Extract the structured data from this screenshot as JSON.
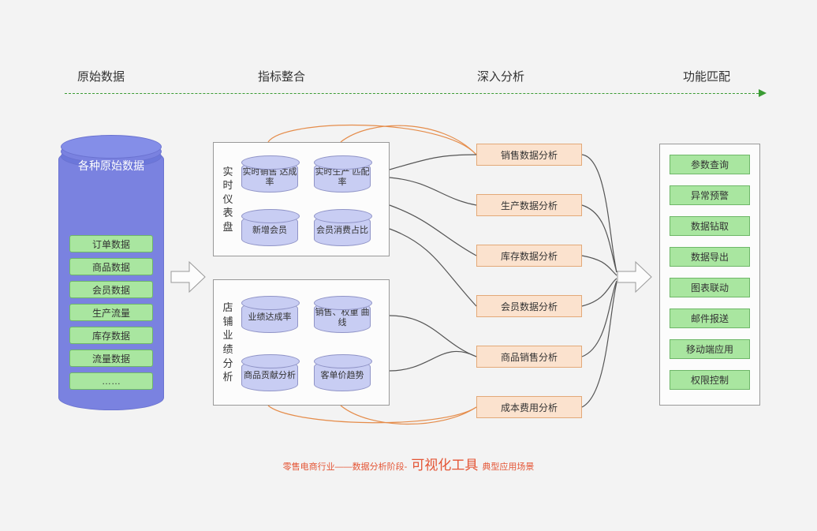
{
  "stages": {
    "raw": "原始数据",
    "integrate": "指标整合",
    "analyze": "深入分析",
    "match": "功能匹配"
  },
  "rawCylinder": {
    "title": "各种原始数据",
    "items": [
      "订单数据",
      "商品数据",
      "会员数据",
      "生产流量",
      "库存数据",
      "流量数据",
      "……"
    ]
  },
  "panels": {
    "realtime": {
      "label": "实时仪表盘",
      "metrics": [
        "实时销售\n达成率",
        "实时生产\n匹配率",
        "新增会员",
        "会员消费占比"
      ]
    },
    "store": {
      "label": "店铺业绩分析",
      "metrics": [
        "业绩达成率",
        "销售、权重\n曲线",
        "商品贡献分析",
        "客单价趋势"
      ]
    }
  },
  "analysis": [
    "销售数据分析",
    "生产数据分析",
    "库存数据分析",
    "会员数据分析",
    "商品销售分析",
    "成本费用分析"
  ],
  "functions": [
    "参数查询",
    "异常预警",
    "数据钻取",
    "数据导出",
    "图表联动",
    "邮件报送",
    "移动端应用",
    "权限控制"
  ],
  "caption": {
    "pre": "零售电商行业——数据分析阶段- ",
    "big": "可视化工具",
    "post": " 典型应用场景"
  },
  "colors": {
    "green": "#3a9b33",
    "orange": "#e58c4a",
    "line": "#555",
    "tag_bg": "#a9e6a0",
    "tag_border": "#6eb768",
    "analysis_bg": "#fbe2ce",
    "analysis_border": "#e3a978",
    "cyl_bg": "#7a82e0",
    "mini_cyl_bg": "#c8cdf3"
  }
}
